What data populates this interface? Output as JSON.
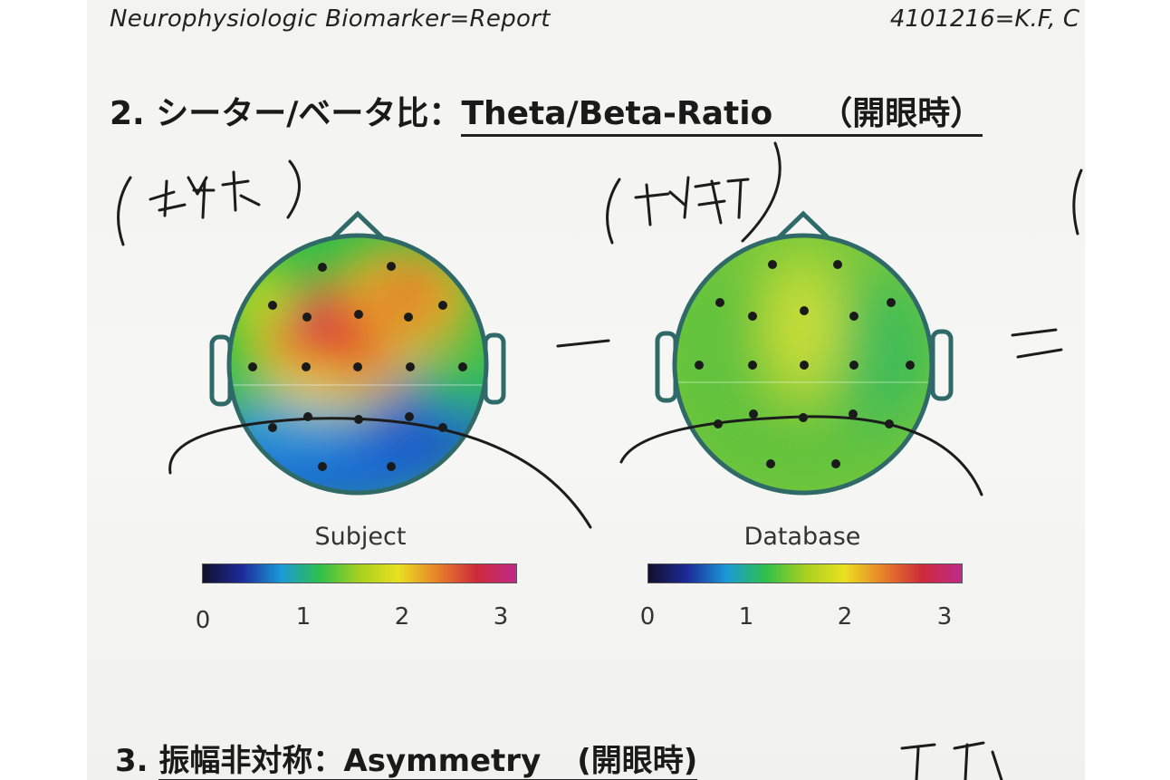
{
  "header": {
    "report_title": "Neurophysiologic Biomarker=Report",
    "patient_id": "4101216=K.F, C"
  },
  "section2": {
    "number": "2.",
    "title_jp": "シーター/ベータ比：",
    "title_en": "Theta/Beta-Ratio",
    "condition": "（開眼時）"
  },
  "maps": [
    {
      "label": "Subject"
    },
    {
      "label": "Database"
    }
  ],
  "colorbar": {
    "ticks": [
      "0",
      "1",
      "2",
      "3"
    ],
    "colors": [
      "#12102a",
      "#1d2a9a",
      "#1a9ad8",
      "#2fc04a",
      "#a8d020",
      "#e8e020",
      "#e8802a",
      "#cc2a3a",
      "#c02a8a"
    ]
  },
  "section3": {
    "number": "3.",
    "title_jp": "振幅非対称：",
    "title_en": "Asymmetry",
    "condition": "(開眼時)"
  }
}
